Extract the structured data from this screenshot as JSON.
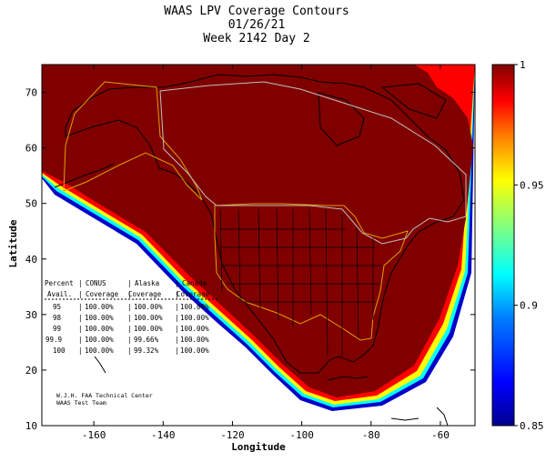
{
  "chart_data": {
    "type": "heatmap",
    "title": [
      "WAAS LPV Coverage Contours",
      "01/26/21",
      "Week 2142 Day 2"
    ],
    "xlabel": "Longitude",
    "ylabel": "Latitude",
    "xlim": [
      -175,
      -50
    ],
    "ylim": [
      10,
      75
    ],
    "xticks": [
      -160,
      -140,
      -120,
      -100,
      -80,
      -60
    ],
    "yticks": [
      10,
      20,
      30,
      40,
      50,
      60,
      70
    ],
    "colorbar": {
      "min": 0.85,
      "max": 1,
      "ticks": [
        1,
        0.95,
        0.9,
        0.85
      ],
      "colors": [
        "#00008f",
        "#0000ff",
        "#0080ff",
        "#00ffff",
        "#80ff80",
        "#ffff00",
        "#ff8000",
        "#ff0000",
        "#800000"
      ]
    },
    "coverage_table": {
      "headers_row1": [
        "Percent",
        "CONUS",
        "Alaska",
        "Canada"
      ],
      "headers_row2": [
        "Avail.",
        "Coverage",
        "Coverage",
        "Coverage"
      ],
      "rows": [
        [
          "95",
          "100.00%",
          "100.00%",
          "100.00%"
        ],
        [
          "98",
          "100.00%",
          "100.00%",
          "100.00%"
        ],
        [
          "99",
          "100.00%",
          "100.00%",
          "100.00%"
        ],
        [
          "99.9",
          "100.00%",
          "99.66%",
          "100.00%"
        ],
        [
          "100",
          "100.00%",
          "99.32%",
          "100.00%"
        ]
      ]
    },
    "credits": [
      "W.J.H. FAA Technical Center",
      "WAAS Test Team"
    ]
  }
}
